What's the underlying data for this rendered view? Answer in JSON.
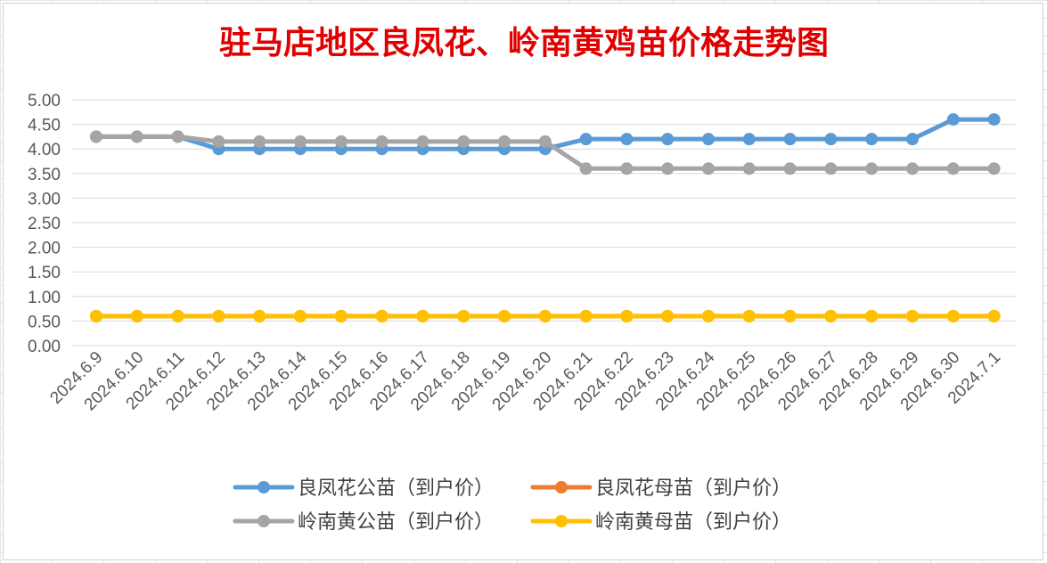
{
  "chart_data": {
    "type": "line",
    "title": "驻马店地区良凤花、岭南黄鸡苗价格走势图",
    "xlabel": "",
    "ylabel": "",
    "ylim": [
      0,
      5
    ],
    "yticks": [
      "0.00",
      "0.50",
      "1.00",
      "1.50",
      "2.00",
      "2.50",
      "3.00",
      "3.50",
      "4.00",
      "4.50",
      "5.00"
    ],
    "grid": true,
    "legend_position": "bottom",
    "categories": [
      "2024.6.9",
      "2024.6.10",
      "2024.6.11",
      "2024.6.12",
      "2024.6.13",
      "2024.6.14",
      "2024.6.15",
      "2024.6.16",
      "2024.6.17",
      "2024.6.18",
      "2024.6.19",
      "2024.6.20",
      "2024.6.21",
      "2024.6.22",
      "2024.6.23",
      "2024.6.24",
      "2024.6.25",
      "2024.6.26",
      "2024.6.27",
      "2024.6.28",
      "2024.6.29",
      "2024.6.30",
      "2024.7.1"
    ],
    "series": [
      {
        "name": "良凤花公苗（到户价）",
        "color": "#5b9bd5",
        "values": [
          4.25,
          4.25,
          4.25,
          4.0,
          4.0,
          4.0,
          4.0,
          4.0,
          4.0,
          4.0,
          4.0,
          4.0,
          4.2,
          4.2,
          4.2,
          4.2,
          4.2,
          4.2,
          4.2,
          4.2,
          4.2,
          4.6,
          4.6
        ]
      },
      {
        "name": "良凤花母苗（到户价）",
        "color": "#ed7d31",
        "values": [
          0.6,
          0.6,
          0.6,
          0.6,
          0.6,
          0.6,
          0.6,
          0.6,
          0.6,
          0.6,
          0.6,
          0.6,
          0.6,
          0.6,
          0.6,
          0.6,
          0.6,
          0.6,
          0.6,
          0.6,
          0.6,
          0.6,
          0.6
        ]
      },
      {
        "name": "岭南黄公苗（到户价）",
        "color": "#a5a5a5",
        "values": [
          4.25,
          4.25,
          4.25,
          4.15,
          4.15,
          4.15,
          4.15,
          4.15,
          4.15,
          4.15,
          4.15,
          4.15,
          3.6,
          3.6,
          3.6,
          3.6,
          3.6,
          3.6,
          3.6,
          3.6,
          3.6,
          3.6,
          3.6
        ]
      },
      {
        "name": "岭南黄母苗（到户价）",
        "color": "#ffc000",
        "values": [
          0.6,
          0.6,
          0.6,
          0.6,
          0.6,
          0.6,
          0.6,
          0.6,
          0.6,
          0.6,
          0.6,
          0.6,
          0.6,
          0.6,
          0.6,
          0.6,
          0.6,
          0.6,
          0.6,
          0.6,
          0.6,
          0.6,
          0.6
        ]
      }
    ]
  },
  "colors": {
    "title": "#e00000",
    "axis_text": "#595959",
    "gridline": "#d9d9d9"
  }
}
